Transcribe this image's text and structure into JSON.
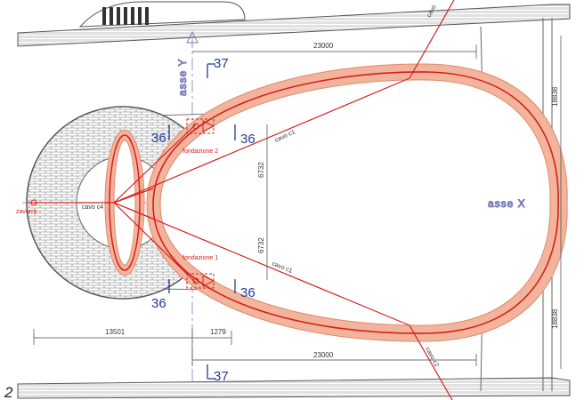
{
  "figure_number": "2",
  "axes": {
    "x_label": "asse X",
    "y_label": "asse Y"
  },
  "dimensions": {
    "top_span": "23000",
    "bottom_span": "23000",
    "right_upper": "18838",
    "right_lower": "18838",
    "inner_upper": "6732",
    "inner_lower": "6732",
    "left_bottom": "13501",
    "mid_bottom": "1279"
  },
  "sections": {
    "top_37": "37",
    "bottom_37": "37",
    "upper_left_36": "36",
    "upper_right_36": "36",
    "lower_left_36": "36",
    "lower_right_36": "36"
  },
  "labels": {
    "fondazione_1": "fondazione 1",
    "fondazione_2": "fondazione 2",
    "cavo_c1_upper": "cavo c1",
    "cavo_c1_lower": "cavo c1",
    "cavo_c4": "cavo c4",
    "cavo_top": "cavo",
    "cavo_bottom": "cavo c2",
    "left_anchor": "zavorra"
  },
  "colors": {
    "rope": "#d42020",
    "mesh_fill": "#f2b49a",
    "section_marker": "#1f3f8f",
    "axis_text": "#7a7ab8",
    "pavement": "#555555"
  }
}
